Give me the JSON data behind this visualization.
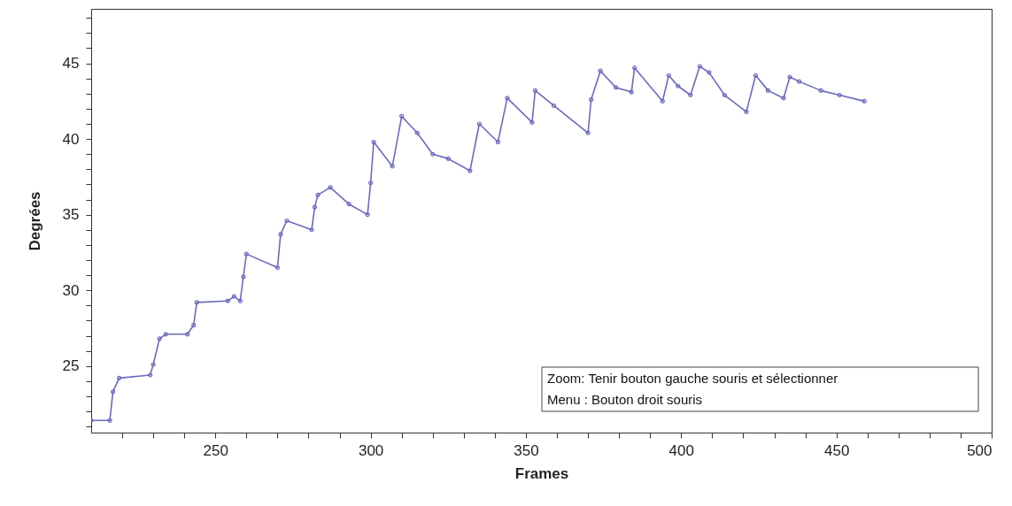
{
  "chart_data": {
    "type": "line",
    "xlabel": "Frames",
    "ylabel": "Degrées",
    "x": [
      210,
      216,
      217,
      219,
      229,
      230,
      232,
      234,
      241,
      243,
      244,
      254,
      256,
      258,
      259,
      260,
      270,
      271,
      273,
      281,
      282,
      283,
      287,
      293,
      299,
      300,
      301,
      307,
      310,
      315,
      320,
      325,
      332,
      335,
      341,
      344,
      352,
      353,
      359,
      370,
      371,
      374,
      379,
      384,
      385,
      394,
      396,
      399,
      403,
      406,
      409,
      414,
      421,
      424,
      428,
      433,
      435,
      438,
      445,
      451,
      459
    ],
    "series": [
      {
        "color": "#6a6ac0",
        "values": [
          21.4,
          21.4,
          23.3,
          24.2,
          24.4,
          25.1,
          26.8,
          27.1,
          27.1,
          27.7,
          29.2,
          29.3,
          29.6,
          29.3,
          30.9,
          32.4,
          31.5,
          33.7,
          34.6,
          34.0,
          35.5,
          36.3,
          36.8,
          35.7,
          35.0,
          37.1,
          39.8,
          38.2,
          41.5,
          40.4,
          39.0,
          38.7,
          37.9,
          41.0,
          39.8,
          42.7,
          41.1,
          43.2,
          42.2,
          40.4,
          42.6,
          44.5,
          43.4,
          43.1,
          44.7,
          42.5,
          44.2,
          43.5,
          42.9,
          44.8,
          44.4,
          42.9,
          41.8,
          44.2,
          43.2,
          42.7,
          44.1,
          43.8,
          43.2,
          42.9,
          42.5
        ]
      }
    ],
    "xlim": [
      210,
      500
    ],
    "xticks": [
      {
        "value": 220,
        "label": null
      },
      {
        "value": 230,
        "label": null
      },
      {
        "value": 240,
        "label": null
      },
      250,
      {
        "value": 260,
        "label": null
      },
      {
        "value": 270,
        "label": null
      },
      {
        "value": 280,
        "label": null
      },
      {
        "value": 290,
        "label": null
      },
      300,
      {
        "value": 310,
        "label": null
      },
      {
        "value": 320,
        "label": null
      },
      {
        "value": 330,
        "label": null
      },
      {
        "value": 340,
        "label": null
      },
      350,
      {
        "value": 360,
        "label": null
      },
      {
        "value": 370,
        "label": null
      },
      {
        "value": 380,
        "label": null
      },
      {
        "value": 390,
        "label": null
      },
      400,
      {
        "value": 410,
        "label": null
      },
      {
        "value": 420,
        "label": null
      },
      {
        "value": 430,
        "label": null
      },
      {
        "value": 440,
        "label": null
      },
      450,
      {
        "value": 460,
        "label": null
      },
      {
        "value": 470,
        "label": null
      },
      {
        "value": 480,
        "label": null
      },
      {
        "value": 490,
        "label": null
      },
      500
    ],
    "ylim": [
      20.6,
      48.6
    ],
    "yticks": [
      {
        "value": 21,
        "label": null
      },
      {
        "value": 22,
        "label": null
      },
      {
        "value": 23,
        "label": null
      },
      {
        "value": 24,
        "label": null
      },
      25,
      {
        "value": 26,
        "label": null
      },
      {
        "value": 27,
        "label": null
      },
      {
        "value": 28,
        "label": null
      },
      {
        "value": 29,
        "label": null
      },
      30,
      {
        "value": 31,
        "label": null
      },
      {
        "value": 32,
        "label": null
      },
      {
        "value": 33,
        "label": null
      },
      {
        "value": 34,
        "label": null
      },
      35,
      {
        "value": 36,
        "label": null
      },
      {
        "value": 37,
        "label": null
      },
      {
        "value": 38,
        "label": null
      },
      {
        "value": 39,
        "label": null
      },
      40,
      {
        "value": 41,
        "label": null
      },
      {
        "value": 42,
        "label": null
      },
      {
        "value": 43,
        "label": null
      },
      {
        "value": 44,
        "label": null
      },
      45,
      {
        "value": 46,
        "label": null
      },
      {
        "value": 47,
        "label": null
      },
      {
        "value": 48,
        "label": null
      }
    ],
    "marker": "circle",
    "line_style": "solid",
    "grid": false,
    "annotations": [
      "Zoom: Tenir bouton gauche souris et sélectionner",
      "Menu : Bouton droit souris"
    ]
  }
}
